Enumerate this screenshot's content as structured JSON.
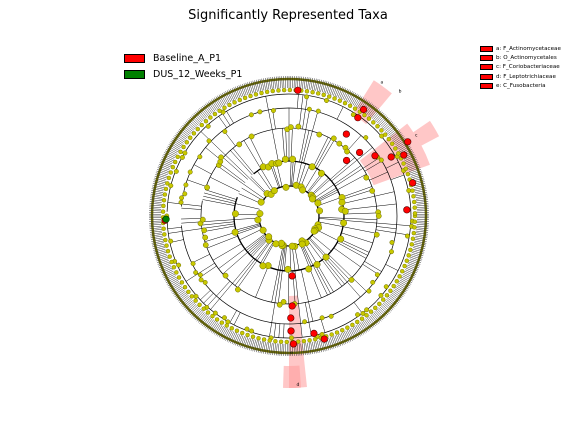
{
  "title": "Significantly Represented Taxa",
  "legend": [
    {
      "label": "Baseline_A_P1",
      "color": "#ff0000"
    },
    {
      "label": "DUS_12_Weeks_P1",
      "color": "#008000"
    }
  ],
  "clade_legend": [
    {
      "label": "a: F_Actinomycetaceae",
      "color": "#ff0000"
    },
    {
      "label": "b: O_Actinomycetales",
      "color": "#ff0000"
    },
    {
      "label": "c: F_Coriobacteriaceae",
      "color": "#ff0000"
    },
    {
      "label": "d: F_Leptotrichiaceae",
      "color": "#ff0000"
    },
    {
      "label": "e: C_Fusobacteria",
      "color": "#ff0000"
    }
  ],
  "clade_marks": [
    "a",
    "b",
    "c",
    "d",
    "e"
  ],
  "colors": {
    "node": "#c8c800",
    "node_edge": "#6b6b00",
    "enriched_baseline": "#ff0000",
    "enriched_dus": "#008000",
    "highlight": "#ff9999",
    "edge": "#000000"
  }
}
